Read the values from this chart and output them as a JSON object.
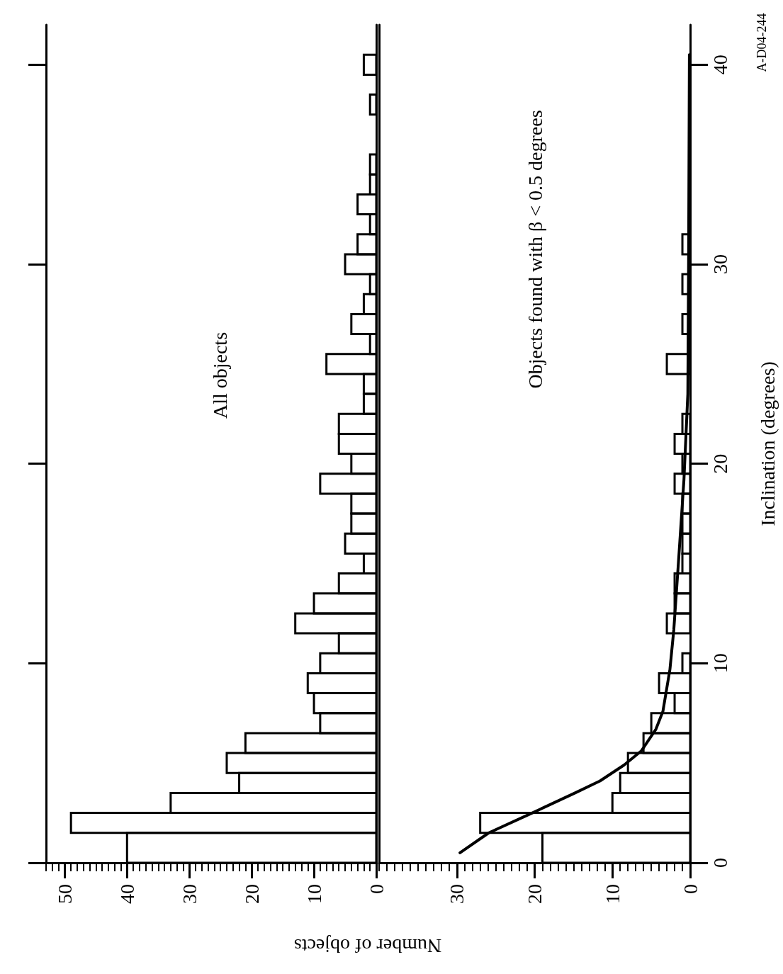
{
  "chart_data": [
    {
      "type": "histogram",
      "orientation": "horizontal",
      "title": "All objects",
      "xlabel": "Number of objects",
      "bins": [
        0,
        1.5,
        2.5,
        3.5,
        4.5,
        5.5,
        6.5,
        7.5,
        8.5,
        9.5,
        10.5,
        11.5,
        12.5,
        13.5,
        14.5,
        15.5,
        16.5,
        17.5,
        18.5,
        19.5,
        20.5,
        21.5,
        22.5,
        23.5,
        24.5,
        25.5,
        26.5,
        27.5,
        28.5,
        29.5,
        30.5,
        31.5,
        32.5,
        33.5,
        34.5,
        35.5,
        37.5,
        38.5,
        39.5,
        40.5
      ],
      "values": [
        40,
        49,
        33,
        22,
        24,
        21,
        9,
        10,
        11,
        9,
        6,
        13,
        10,
        6,
        2,
        5,
        4,
        4,
        9,
        4,
        6,
        6,
        2,
        2,
        8,
        1,
        4,
        2,
        1,
        5,
        3,
        1,
        3,
        1,
        1,
        0,
        1,
        0,
        2
      ],
      "color": "#000000",
      "xlim": [
        53,
        0
      ],
      "xticks": [
        50,
        40,
        30,
        20,
        10,
        0
      ],
      "ylim": [
        0,
        42
      ],
      "yticks": [
        0,
        10,
        20,
        30,
        40
      ],
      "tick_labels": "x",
      "grid": false
    },
    {
      "type": "histogram",
      "orientation": "horizontal",
      "title": "Objects found with β < 0.5 degrees",
      "ylabel": "Inclination (degrees)",
      "annotations": [
        "A-D04-244"
      ],
      "xlim": [
        40,
        0
      ],
      "xticks": [
        30,
        20,
        10,
        0
      ],
      "ylim": [
        0,
        42
      ],
      "yticks": [
        0,
        10,
        20,
        30,
        40
      ],
      "grid": false,
      "series": [
        {
          "type": "histogram",
          "color": "#000000",
          "bins": [
            0,
            1.5,
            2.5,
            3.5,
            4.5,
            5.5,
            6.5,
            7.5,
            8.5,
            9.5,
            10.5,
            11.5,
            12.5,
            13.5,
            14.5,
            15.5,
            16.5,
            17.5,
            18.5,
            19.5,
            20.5,
            21.5,
            22.5,
            24.5,
            25.5,
            26.5,
            27.5,
            28.5,
            29.5,
            30.5,
            31.5
          ],
          "values": [
            19,
            27,
            10,
            9,
            8,
            6,
            5,
            2,
            4,
            1,
            0,
            3,
            2,
            2,
            1,
            1,
            1,
            1,
            2,
            1,
            2,
            1,
            0,
            3,
            0,
            1,
            0,
            1,
            0,
            1
          ]
        },
        {
          "type": "line",
          "color": "#000000",
          "marker": "none",
          "x": [
            0.5,
            1.5,
            2.5,
            3.5,
            4.1,
            4.9,
            5.6,
            6.7,
            7.6,
            9.7,
            11.7,
            15.1,
            19.2,
            23.5,
            30.3,
            40.5
          ],
          "values": [
            29.6,
            25.9,
            20.3,
            14.8,
            11.6,
            8.5,
            6.3,
            4.4,
            3.5,
            2.6,
            2.1,
            1.5,
            0.8,
            0.3,
            0.2,
            0.1
          ]
        }
      ]
    }
  ]
}
